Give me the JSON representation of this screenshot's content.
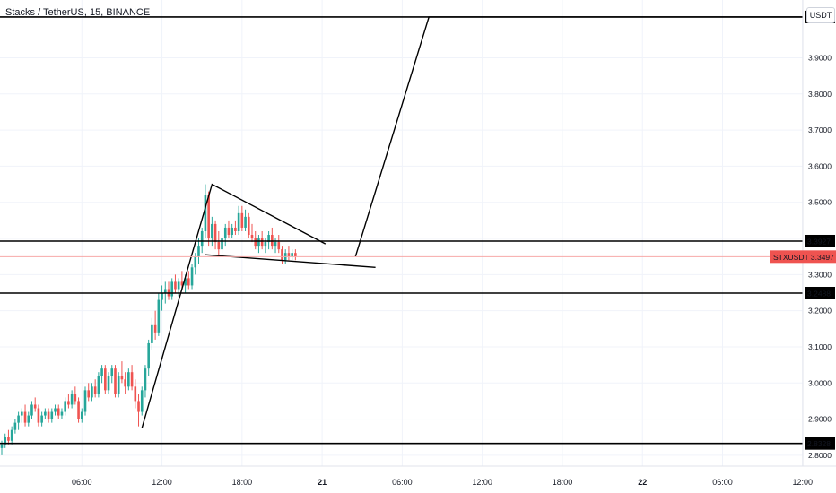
{
  "header": {
    "title": "Stacks / TetherUS, 15, BINANCE",
    "currency": "USDT"
  },
  "colors": {
    "up": "#26a69a",
    "down": "#ef5350",
    "line": "#000000",
    "grid": "#f0f3fa"
  },
  "chart_data": {
    "type": "candlestick",
    "title": "Stacks / TetherUS, 15, BINANCE",
    "symbol": "STXUSDT",
    "last_price": "3.3497",
    "ylim": [
      2.77,
      4.06
    ],
    "y_ticks": [
      "2.8000",
      "2.9000",
      "3.0000",
      "3.1000",
      "3.2000",
      "3.3000",
      "3.4000",
      "3.5000",
      "3.6000",
      "3.7000",
      "3.8000",
      "3.9000"
    ],
    "y_tick_values": [
      2.8,
      2.9,
      3.0,
      3.1,
      3.2,
      3.3,
      3.4,
      3.5,
      3.6,
      3.7,
      3.8,
      3.9
    ],
    "x_ticks": [
      {
        "label": "06:00",
        "bold": false
      },
      {
        "label": "12:00",
        "bold": false
      },
      {
        "label": "18:00",
        "bold": false
      },
      {
        "label": "21",
        "bold": true
      },
      {
        "label": "06:00",
        "bold": false
      },
      {
        "label": "12:00",
        "bold": false
      },
      {
        "label": "18:00",
        "bold": false
      },
      {
        "label": "22",
        "bold": true
      },
      {
        "label": "06:00",
        "bold": false
      },
      {
        "label": "12:00",
        "bold": false
      }
    ],
    "x_tick_bar_index": [
      24,
      48,
      72,
      96,
      120,
      144,
      168,
      192,
      216,
      240
    ],
    "horizontal_levels": [
      {
        "value": 4.0131,
        "label": "4.0131"
      },
      {
        "value": 3.3927,
        "label": "3.3927"
      },
      {
        "value": 3.2488,
        "label": "3.2488"
      },
      {
        "value": 2.8328,
        "label": "2.8328"
      }
    ],
    "trendlines": [
      {
        "points": [
          [
            42,
            2.875
          ],
          [
            63,
            3.55
          ],
          [
            97,
            3.385
          ]
        ]
      },
      {
        "points": [
          [
            61,
            3.355
          ],
          [
            112,
            3.32
          ]
        ]
      },
      {
        "points": [
          [
            106,
            3.35
          ],
          [
            128,
            4.013
          ],
          [
            240,
            4.013
          ]
        ]
      }
    ],
    "candles": [
      [
        2.82,
        2.84,
        2.8,
        2.83
      ],
      [
        2.83,
        2.86,
        2.82,
        2.85
      ],
      [
        2.85,
        2.87,
        2.83,
        2.84
      ],
      [
        2.84,
        2.88,
        2.83,
        2.87
      ],
      [
        2.87,
        2.9,
        2.86,
        2.89
      ],
      [
        2.89,
        2.92,
        2.87,
        2.91
      ],
      [
        2.91,
        2.93,
        2.89,
        2.92
      ],
      [
        2.92,
        2.94,
        2.88,
        2.89
      ],
      [
        2.89,
        2.92,
        2.88,
        2.91
      ],
      [
        2.91,
        2.95,
        2.9,
        2.94
      ],
      [
        2.94,
        2.96,
        2.92,
        2.93
      ],
      [
        2.93,
        2.94,
        2.88,
        2.89
      ],
      [
        2.89,
        2.92,
        2.88,
        2.91
      ],
      [
        2.91,
        2.93,
        2.9,
        2.92
      ],
      [
        2.92,
        2.93,
        2.89,
        2.9
      ],
      [
        2.9,
        2.93,
        2.89,
        2.92
      ],
      [
        2.92,
        2.94,
        2.91,
        2.93
      ],
      [
        2.93,
        2.94,
        2.9,
        2.91
      ],
      [
        2.91,
        2.93,
        2.9,
        2.92
      ],
      [
        2.92,
        2.96,
        2.91,
        2.95
      ],
      [
        2.95,
        2.97,
        2.93,
        2.94
      ],
      [
        2.94,
        2.98,
        2.93,
        2.97
      ],
      [
        2.97,
        2.99,
        2.94,
        2.95
      ],
      [
        2.95,
        2.96,
        2.89,
        2.9
      ],
      [
        2.9,
        2.93,
        2.89,
        2.92
      ],
      [
        2.92,
        2.99,
        2.91,
        2.98
      ],
      [
        2.98,
        3.0,
        2.95,
        2.96
      ],
      [
        2.96,
        3.0,
        2.95,
        2.99
      ],
      [
        2.99,
        3.01,
        2.96,
        2.97
      ],
      [
        2.97,
        3.03,
        2.96,
        3.02
      ],
      [
        3.02,
        3.05,
        3.0,
        3.04
      ],
      [
        3.04,
        3.05,
        2.97,
        2.98
      ],
      [
        2.98,
        3.03,
        2.97,
        3.02
      ],
      [
        3.02,
        3.05,
        3.0,
        3.04
      ],
      [
        3.04,
        3.05,
        2.96,
        2.97
      ],
      [
        2.97,
        3.03,
        2.96,
        3.02
      ],
      [
        3.02,
        3.06,
        3.0,
        3.01
      ],
      [
        3.01,
        3.03,
        2.97,
        2.99
      ],
      [
        2.99,
        3.04,
        2.98,
        3.03
      ],
      [
        3.03,
        3.05,
        2.98,
        2.99
      ],
      [
        2.99,
        3.01,
        2.93,
        2.95
      ],
      [
        2.95,
        2.97,
        2.88,
        2.92
      ],
      [
        2.92,
        2.99,
        2.91,
        2.98
      ],
      [
        2.98,
        3.05,
        2.96,
        3.04
      ],
      [
        3.04,
        3.12,
        3.02,
        3.11
      ],
      [
        3.11,
        3.18,
        3.09,
        3.16
      ],
      [
        3.16,
        3.2,
        3.12,
        3.14
      ],
      [
        3.14,
        3.25,
        3.13,
        3.23
      ],
      [
        3.23,
        3.27,
        3.2,
        3.25
      ],
      [
        3.25,
        3.28,
        3.22,
        3.26
      ],
      [
        3.26,
        3.28,
        3.23,
        3.24
      ],
      [
        3.24,
        3.29,
        3.23,
        3.28
      ],
      [
        3.28,
        3.3,
        3.25,
        3.26
      ],
      [
        3.26,
        3.29,
        3.24,
        3.28
      ],
      [
        3.28,
        3.31,
        3.26,
        3.27
      ],
      [
        3.27,
        3.3,
        3.25,
        3.29
      ],
      [
        3.29,
        3.31,
        3.26,
        3.27
      ],
      [
        3.27,
        3.33,
        3.26,
        3.32
      ],
      [
        3.32,
        3.36,
        3.3,
        3.35
      ],
      [
        3.35,
        3.4,
        3.33,
        3.38
      ],
      [
        3.38,
        3.43,
        3.36,
        3.42
      ],
      [
        3.42,
        3.55,
        3.4,
        3.52
      ],
      [
        3.52,
        3.53,
        3.38,
        3.4
      ],
      [
        3.4,
        3.46,
        3.38,
        3.44
      ],
      [
        3.44,
        3.45,
        3.37,
        3.39
      ],
      [
        3.39,
        3.42,
        3.35,
        3.37
      ],
      [
        3.37,
        3.41,
        3.36,
        3.4
      ],
      [
        3.4,
        3.44,
        3.38,
        3.43
      ],
      [
        3.43,
        3.45,
        3.4,
        3.41
      ],
      [
        3.41,
        3.44,
        3.4,
        3.43
      ],
      [
        3.43,
        3.45,
        3.41,
        3.42
      ],
      [
        3.42,
        3.49,
        3.41,
        3.47
      ],
      [
        3.47,
        3.49,
        3.42,
        3.43
      ],
      [
        3.43,
        3.48,
        3.42,
        3.46
      ],
      [
        3.46,
        3.47,
        3.4,
        3.41
      ],
      [
        3.41,
        3.44,
        3.39,
        3.4
      ],
      [
        3.4,
        3.42,
        3.37,
        3.38
      ],
      [
        3.38,
        3.41,
        3.36,
        3.4
      ],
      [
        3.4,
        3.42,
        3.37,
        3.38
      ],
      [
        3.38,
        3.4,
        3.36,
        3.39
      ],
      [
        3.39,
        3.42,
        3.37,
        3.41
      ],
      [
        3.41,
        3.43,
        3.37,
        3.38
      ],
      [
        3.38,
        3.4,
        3.36,
        3.39
      ],
      [
        3.39,
        3.41,
        3.36,
        3.37
      ],
      [
        3.37,
        3.38,
        3.33,
        3.34
      ],
      [
        3.34,
        3.37,
        3.33,
        3.36
      ],
      [
        3.36,
        3.38,
        3.34,
        3.35
      ],
      [
        3.35,
        3.37,
        3.34,
        3.36
      ],
      [
        3.36,
        3.37,
        3.34,
        3.35
      ]
    ]
  },
  "price_tag": {
    "symbol": "STXUSDT",
    "value": "3.3497"
  }
}
